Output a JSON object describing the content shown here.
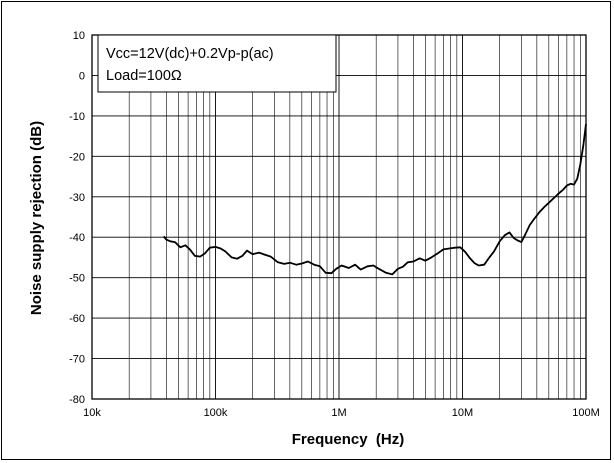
{
  "chart_data": {
    "type": "line",
    "xlabel": "Frequency  (Hz)",
    "ylabel": "Noise supply rejection (dB)",
    "x_scale": "log",
    "xlim": [
      10000,
      100000000
    ],
    "ylim": [
      -80,
      10
    ],
    "x_ticks": [
      {
        "value": 10000,
        "label": "10k"
      },
      {
        "value": 100000,
        "label": "100k"
      },
      {
        "value": 1000000,
        "label": "1M"
      },
      {
        "value": 10000000,
        "label": "10M"
      },
      {
        "value": 100000000,
        "label": "100M"
      }
    ],
    "y_ticks": [
      10,
      0,
      -10,
      -20,
      -30,
      -40,
      -50,
      -60,
      -70,
      -80
    ],
    "grid": true,
    "annotations": [
      "Vcc=12V(dc)+0.2Vp-p(ac)",
      "Load=100Ω"
    ],
    "series": [
      {
        "x": [
          38000,
          40000,
          43000,
          47000,
          52000,
          57000,
          62000,
          68000,
          75000,
          82000,
          90000,
          100000,
          110000,
          120000,
          135000,
          150000,
          165000,
          180000,
          200000,
          225000,
          250000,
          280000,
          320000,
          360000,
          400000,
          450000,
          500000,
          560000,
          630000,
          700000,
          780000,
          870000,
          950000,
          1050000,
          1200000,
          1350000,
          1500000,
          1700000,
          1900000,
          2100000,
          2400000,
          2700000,
          3000000,
          3300000,
          3600000,
          4000000,
          4500000,
          5000000,
          5600000,
          6300000,
          7000000,
          7800000,
          8700000,
          9600000,
          10500000,
          11500000,
          12500000,
          13500000,
          15000000,
          16500000,
          18000000,
          20000000,
          22000000,
          24000000,
          26000000,
          28000000,
          30000000,
          32000000,
          35000000,
          38000000,
          42000000,
          46000000,
          50000000,
          55000000,
          60000000,
          65000000,
          70000000,
          75000000,
          80000000,
          85000000,
          90000000,
          95000000,
          100000000
        ],
        "y": [
          -39.8,
          -40.6,
          -41.0,
          -41.2,
          -42.5,
          -42.0,
          -43.0,
          -44.6,
          -44.8,
          -44.0,
          -42.6,
          -42.4,
          -42.8,
          -43.5,
          -45.0,
          -45.3,
          -44.6,
          -43.3,
          -44.2,
          -43.8,
          -44.3,
          -44.8,
          -46.2,
          -46.6,
          -46.3,
          -46.8,
          -46.5,
          -46.0,
          -46.8,
          -47.2,
          -48.8,
          -48.9,
          -47.8,
          -47.0,
          -47.6,
          -46.8,
          -48.0,
          -47.2,
          -47.0,
          -47.8,
          -48.8,
          -49.2,
          -47.8,
          -47.3,
          -46.2,
          -46.0,
          -45.2,
          -45.8,
          -45.0,
          -44.0,
          -43.0,
          -42.8,
          -42.6,
          -42.5,
          -43.6,
          -45.2,
          -46.4,
          -47.0,
          -46.8,
          -45.0,
          -43.5,
          -41.0,
          -39.5,
          -38.8,
          -40.2,
          -40.8,
          -41.2,
          -39.5,
          -37.0,
          -35.5,
          -33.8,
          -32.5,
          -31.5,
          -30.3,
          -29.2,
          -28.3,
          -27.2,
          -26.8,
          -27.0,
          -25.5,
          -22.0,
          -17.5,
          -12.0
        ]
      }
    ]
  }
}
